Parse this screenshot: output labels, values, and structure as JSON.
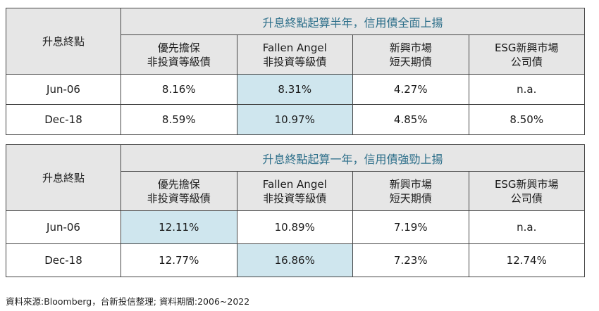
{
  "tables": [
    {
      "title": "升息終點起算半年，信用債全面上揚",
      "row_header": "升息終點",
      "columns": [
        {
          "line1": "優先擔保",
          "line2": "非投資等級債"
        },
        {
          "line1": "Fallen Angel",
          "line2": "非投資等級債"
        },
        {
          "line1": "新興市場",
          "line2": "短天期債"
        },
        {
          "line1": "ESG新興市場",
          "line2": "公司債"
        }
      ],
      "rows": [
        {
          "label": "Jun-06",
          "values": [
            "8.16%",
            "8.31%",
            "4.27%",
            "n.a."
          ],
          "highlight": 1
        },
        {
          "label": "Dec-18",
          "values": [
            "8.59%",
            "10.97%",
            "4.85%",
            "8.50%"
          ],
          "highlight": 1
        }
      ]
    },
    {
      "title": "升息終點起算一年，信用債強勁上揚",
      "row_header": "升息終點",
      "columns": [
        {
          "line1": "優先擔保",
          "line2": "非投資等級債"
        },
        {
          "line1": "Fallen Angel",
          "line2": "非投資等級債"
        },
        {
          "line1": "新興市場",
          "line2": "短天期債"
        },
        {
          "line1": "ESG新興市場",
          "line2": "公司債"
        }
      ],
      "rows": [
        {
          "label": "Jun-06",
          "values": [
            "12.11%",
            "10.89%",
            "7.19%",
            "n.a."
          ],
          "highlight": 0
        },
        {
          "label": "Dec-18",
          "values": [
            "12.77%",
            "16.86%",
            "7.23%",
            "12.74%"
          ],
          "highlight": 1
        }
      ]
    }
  ],
  "highlight_color": "#cfe6ee",
  "title_color": "#2d6f8a",
  "source": "資料來源:Bloomberg，台新投信整理; 資料期間:2006~2022"
}
